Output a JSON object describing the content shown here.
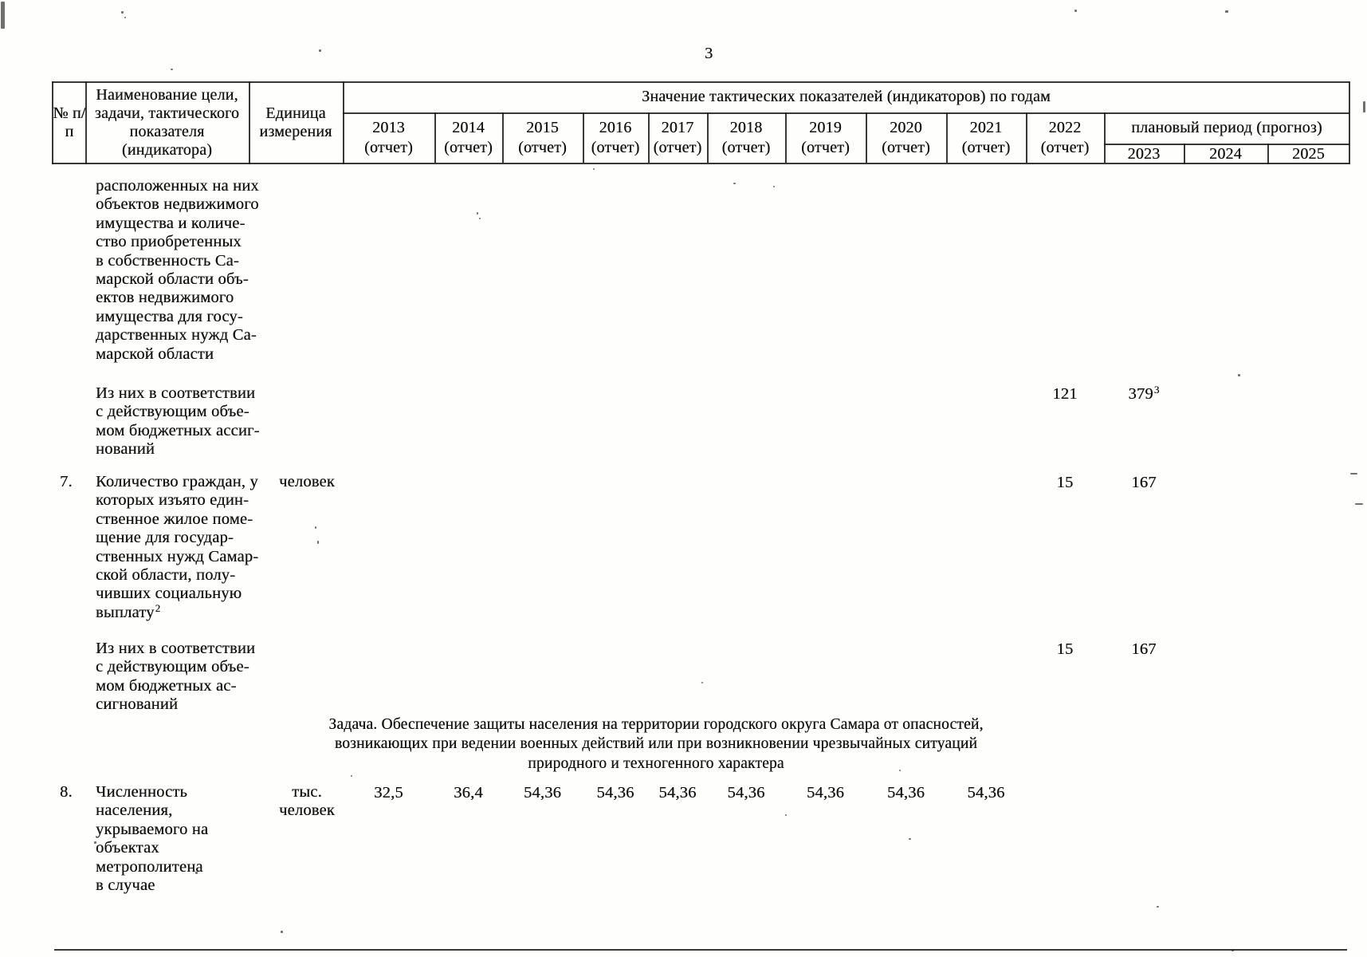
{
  "page": {
    "number": "3"
  },
  "table": {
    "values_title": "Значение тактических показателей (индикаторов) по годам",
    "header": {
      "num": "№ п/п",
      "name": "Наименование цели, задачи, тактического показателя (индикатора)",
      "unit": "Единица измерения",
      "planning_title": "плановый период (прогноз)",
      "report_note": "(отчет)",
      "report_years": [
        "2013",
        "2014",
        "2015",
        "2016",
        "2017",
        "2018",
        "2019",
        "2020",
        "2021",
        "2022"
      ],
      "plan_years": [
        "2023",
        "2024",
        "2025"
      ]
    },
    "rows": [
      {
        "num": "",
        "name_lines": [
          "расположенных на них",
          "объектов недвижимого",
          "имущества и количе-",
          "ство приобретенных",
          "в собственность Са-",
          "марской области объ-",
          "ектов недвижимого",
          "имущества для госу-",
          "дарственных нужд Са-",
          "марской области"
        ],
        "unit_lines": [],
        "values": []
      },
      {
        "num": "",
        "name_lines": [
          "Из них в соответствии",
          "с действующим объе-",
          "мом бюджетных ассиг-",
          "нований"
        ],
        "unit_lines": [],
        "values": [
          {
            "col": "2022",
            "v": "121"
          },
          {
            "col": "2023",
            "v": "379",
            "sup": "3"
          }
        ]
      },
      {
        "num": "7.",
        "name_lines": [
          "Количество граждан, у",
          "которых изъято един-",
          "ственное жилое поме-",
          "щение для государ-",
          "ственных нужд Самар-",
          "ской области, полу-",
          "чивших социальную",
          {
            "text": "выплату",
            "sup": "2"
          }
        ],
        "unit_lines": [
          "человек"
        ],
        "values": [
          {
            "col": "2022",
            "v": "15"
          },
          {
            "col": "2023",
            "v": "167"
          }
        ]
      },
      {
        "num": "",
        "name_lines": [
          "Из них в соответствии",
          "с действующим объе-",
          "мом бюджетных ас-",
          "сигнований"
        ],
        "unit_lines": [],
        "values": [
          {
            "col": "2022",
            "v": "15"
          },
          {
            "col": "2023",
            "v": "167"
          }
        ]
      },
      {
        "num": "8.",
        "name_lines": [
          "Численность",
          "населения,",
          "укрываемого на",
          "объектах",
          "метрополитена",
          "в случае"
        ],
        "unit_lines": [
          "тыс.",
          "человек"
        ],
        "values": [
          {
            "col": "2013",
            "v": "32,5"
          },
          {
            "col": "2014",
            "v": "36,4"
          },
          {
            "col": "2015",
            "v": "54,36"
          },
          {
            "col": "2016",
            "v": "54,36"
          },
          {
            "col": "2017",
            "v": "54,36"
          },
          {
            "col": "2018",
            "v": "54,36"
          },
          {
            "col": "2019",
            "v": "54,36"
          },
          {
            "col": "2020",
            "v": "54,36"
          },
          {
            "col": "2021",
            "v": "54,36"
          }
        ]
      }
    ],
    "task_heading": {
      "lines": [
        "Задача. Обеспечение защиты населения на территории городского округа Самара от опасностей,",
        "возникающих при ведении военных действий или при возникновении чрезвычайных ситуаций",
        "природного и техногенного характера"
      ]
    }
  }
}
